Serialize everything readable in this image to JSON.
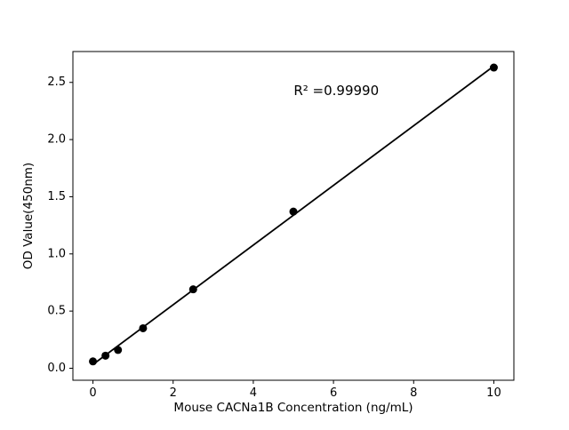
{
  "figure": {
    "background": "#ffffff",
    "plot_border_color": "#000000"
  },
  "chart_data": {
    "type": "scatter",
    "title": "",
    "xlabel": "Mouse CACNa1B Concentration (ng/mL)",
    "ylabel": "OD Value(450nm)",
    "x": [
      0,
      0.313,
      0.625,
      1.25,
      2.5,
      5,
      10
    ],
    "y": [
      0.06,
      0.11,
      0.16,
      0.35,
      0.69,
      1.37,
      2.63
    ],
    "fit_line": {
      "slope": 0.261,
      "intercept": 0.033,
      "x_start": 0,
      "x_end": 10
    },
    "annotation": {
      "text": "R² =0.99990",
      "x": 6.07,
      "y": 2.43
    },
    "xtick_values": [
      0,
      2,
      4,
      6,
      8,
      10
    ],
    "xtick_labels": [
      "0",
      "2",
      "4",
      "6",
      "8",
      "10"
    ],
    "ytick_values": [
      0.0,
      0.5,
      1.0,
      1.5,
      2.0,
      2.5
    ],
    "ytick_labels": [
      "0.0",
      "0.5",
      "1.0",
      "1.5",
      "2.0",
      "2.5"
    ],
    "xlim": [
      -0.5,
      10.5
    ],
    "ylim": [
      -0.105,
      2.77
    ],
    "grid": false,
    "legend": null,
    "marker_color": "#000000",
    "line_color": "#000000"
  }
}
